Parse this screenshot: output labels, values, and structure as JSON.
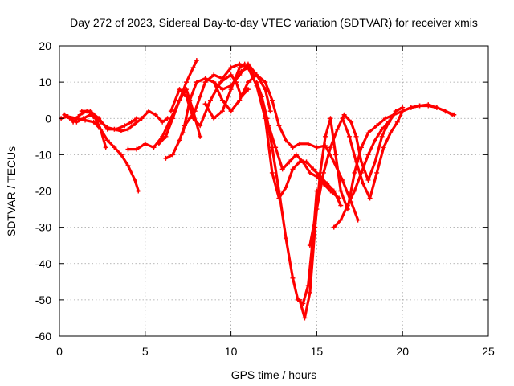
{
  "chart_data": {
    "type": "scatter",
    "title": "Day 272 of 2023, Sidereal Day-to-day VTEC variation (SDTVAR) for receiver xmis",
    "xlabel": "GPS time / hours",
    "ylabel": "SDTVAR / TECUs",
    "xlim": [
      0,
      25
    ],
    "ylim": [
      -60,
      20
    ],
    "xticks": [
      0,
      5,
      10,
      15,
      20,
      25
    ],
    "yticks": [
      -60,
      -50,
      -40,
      -30,
      -20,
      -10,
      0,
      10,
      20
    ],
    "xtick_labels": [
      "0",
      "5",
      "10",
      "15",
      "20",
      "25"
    ],
    "ytick_labels": [
      "-60",
      "-50",
      "-40",
      "-30",
      "-20",
      "-10",
      "0",
      "10",
      "20"
    ],
    "grid": true,
    "legend": "none",
    "marker": "cross",
    "color": "#ff0000",
    "series": [
      {
        "x": [
          0.1,
          0.5,
          1.0,
          1.5,
          2.0,
          2.4,
          2.8,
          3.2,
          3.6,
          4.0,
          4.4,
          4.6
        ],
        "y": [
          0,
          0.5,
          0,
          -0.5,
          -1,
          -3,
          -6,
          -8,
          -10,
          -13,
          -17,
          -20
        ]
      },
      {
        "x": [
          0.3,
          0.6,
          1.0,
          1.4,
          1.8,
          2.1,
          2.4,
          2.7
        ],
        "y": [
          1,
          0,
          -1,
          0,
          1,
          0,
          -3,
          -8
        ]
      },
      {
        "x": [
          0.8,
          1.2,
          1.6,
          2.0,
          2.4,
          2.8,
          3.2,
          3.6,
          4.0,
          4.4,
          4.8,
          5.2,
          5.6,
          6.0,
          6.3
        ],
        "y": [
          -1,
          1,
          2,
          1,
          -1,
          -2.5,
          -3,
          -3.5,
          -3,
          -1.5,
          0,
          2,
          1,
          -1,
          0
        ]
      },
      {
        "x": [
          1.3,
          1.8,
          2.3,
          2.8,
          3.3,
          3.8,
          4.2,
          4.5
        ],
        "y": [
          2,
          2,
          0,
          -3,
          -3,
          -2,
          -1,
          0
        ]
      },
      {
        "x": [
          4.0,
          4.5,
          5.0,
          5.5,
          6.0,
          6.5,
          7.0,
          7.4,
          7.8,
          8.0
        ],
        "y": [
          -8.5,
          -8.5,
          -7,
          -8,
          -5,
          0,
          5,
          10,
          14,
          16
        ]
      },
      {
        "x": [
          6.2,
          6.6,
          7.0,
          7.3,
          7.6,
          7.9,
          8.2,
          8.5,
          9.0,
          9.5,
          10.0,
          10.5,
          11.0,
          11.3
        ],
        "y": [
          -11,
          -10,
          -6,
          -2,
          0,
          2,
          6,
          10,
          12,
          11,
          14,
          15,
          14,
          12
        ]
      },
      {
        "x": [
          5.8,
          6.2,
          6.6,
          7.0,
          7.4,
          7.8,
          8.2
        ],
        "y": [
          -7,
          -5,
          0,
          5,
          8,
          2,
          -5
        ]
      },
      {
        "x": [
          6.5,
          7.0,
          7.4,
          7.8,
          8.2,
          8.8,
          9.4,
          10.0,
          10.3,
          10.6,
          11.0
        ],
        "y": [
          2,
          8,
          6,
          0,
          -2,
          5,
          10,
          12,
          10,
          6,
          8
        ]
      },
      {
        "x": [
          7.2,
          7.6,
          8.0,
          8.5,
          9.0,
          9.5,
          10.0,
          10.5,
          11.0,
          11.5,
          12.0,
          12.3
        ],
        "y": [
          -4,
          5,
          10,
          11,
          10,
          8,
          9,
          12,
          15,
          12,
          8,
          2
        ]
      },
      {
        "x": [
          8.5,
          9.0,
          9.5,
          10.0,
          10.5,
          10.8
        ],
        "y": [
          4,
          0,
          2,
          8,
          14,
          15
        ]
      },
      {
        "x": [
          9.0,
          9.5,
          10.0,
          10.5,
          11.0,
          11.5,
          12.0,
          12.4,
          12.8,
          13.2,
          13.6,
          14.0,
          14.5,
          15.0,
          15.5,
          16.0,
          16.5,
          17.0,
          17.4
        ],
        "y": [
          10,
          5,
          2,
          5,
          10,
          12,
          10,
          5,
          -2,
          -6,
          -8,
          -7,
          -7,
          -8,
          -7.5,
          -12,
          -17,
          -23,
          -28
        ]
      },
      {
        "x": [
          10.6,
          11.0,
          11.5,
          12.0,
          12.4,
          12.8,
          13.2,
          13.6,
          14.0,
          14.4,
          14.8,
          15.2,
          15.6,
          16.0,
          16.4
        ],
        "y": [
          13,
          14,
          9,
          0,
          -15,
          -22,
          -19,
          -14,
          -12,
          -12,
          -14,
          -16,
          -18,
          -20,
          -24
        ]
      },
      {
        "x": [
          11.5,
          11.8,
          12.1,
          12.4,
          12.8,
          13.2,
          13.6,
          13.9,
          14.2,
          14.5,
          14.8,
          15.0
        ],
        "y": [
          10,
          6,
          0,
          -8,
          -20,
          -33,
          -44,
          -50,
          -51,
          -46,
          -32,
          -20
        ]
      },
      {
        "x": [
          12.2,
          12.6,
          13.0,
          13.4,
          13.8,
          14.2,
          14.6,
          15.0,
          15.4,
          15.8,
          16.3
        ],
        "y": [
          -2,
          -8,
          -14,
          -12,
          -10,
          -12,
          -15,
          -16,
          -18,
          -20,
          -22
        ]
      },
      {
        "x": [
          14.0,
          14.3,
          14.6,
          14.9,
          15.2,
          15.5,
          15.8,
          16.1,
          16.4,
          16.8,
          17.2,
          17.6,
          18.0,
          18.5,
          19.0,
          19.5,
          20.0,
          20.5,
          21.0,
          21.5,
          22.0,
          22.5,
          23.0
        ],
        "y": [
          -50,
          -55,
          -48,
          -30,
          -15,
          -5,
          0,
          -10,
          -20,
          -25,
          -15,
          -8,
          -4,
          -2,
          0,
          1,
          2,
          3,
          3.5,
          3.8,
          3,
          2,
          1
        ]
      },
      {
        "x": [
          14.6,
          15.0,
          15.4,
          15.8,
          16.2,
          16.6,
          17.0,
          17.3,
          17.6,
          18.0,
          18.4,
          18.8,
          19.2,
          19.5
        ],
        "y": [
          -35,
          -25,
          -15,
          -8,
          -3,
          1,
          -1,
          -5,
          -12,
          -17,
          -12,
          -5,
          -1,
          1
        ]
      },
      {
        "x": [
          16.0,
          16.4,
          16.8,
          17.2,
          17.6,
          18.0,
          18.4,
          18.8,
          19.2,
          19.6,
          20.0
        ],
        "y": [
          -30,
          -28,
          -24,
          -20,
          -15,
          -10,
          -6,
          -3,
          -1,
          2,
          3
        ]
      },
      {
        "x": [
          16.5,
          16.9,
          17.3,
          17.7,
          18.1,
          18.5,
          18.9,
          19.3,
          19.7,
          20.0,
          20.5,
          21.0,
          21.5,
          22.0,
          22.5,
          22.9
        ],
        "y": [
          0,
          -5,
          -12,
          -18,
          -22,
          -15,
          -8,
          -4,
          -1,
          2,
          3,
          3.5,
          3.5,
          3,
          2,
          1
        ]
      }
    ]
  }
}
